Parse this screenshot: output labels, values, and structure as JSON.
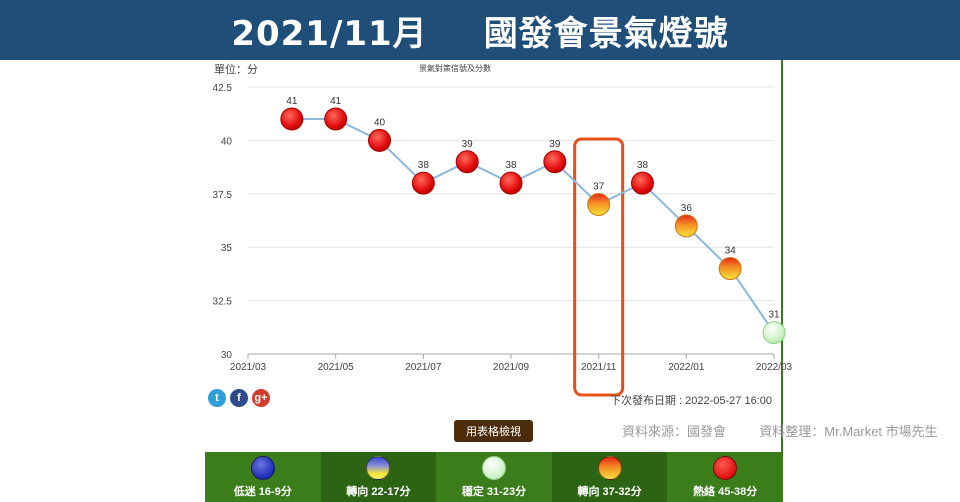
{
  "header": {
    "date": "2021/11月",
    "title": "國發會景氣燈號"
  },
  "unit_label": "單位：分",
  "chart_data": {
    "type": "line",
    "title": "景氣對策信號及分數",
    "ylim": [
      30,
      42.5
    ],
    "y_ticks": [
      "42.5",
      "40",
      "37.5",
      "35",
      "32.5",
      "30"
    ],
    "x_tick_labels": [
      "2021/03",
      "2021/05",
      "2021/07",
      "2021/09",
      "2021/11",
      "2022/01",
      "2022/03"
    ],
    "x": [
      "2021/04",
      "2021/05",
      "2021/06",
      "2021/07",
      "2021/08",
      "2021/09",
      "2021/10",
      "2021/11",
      "2021/12",
      "2022/01",
      "2022/02",
      "2022/03"
    ],
    "values": [
      41,
      41,
      40,
      38,
      39,
      38,
      39,
      37,
      38,
      36,
      34,
      31
    ],
    "data_labels": [
      "41",
      "41",
      "40",
      "38",
      "39",
      "38",
      "39",
      "37",
      "38",
      "36",
      "34",
      "31"
    ],
    "signals": [
      "red",
      "red",
      "red",
      "red",
      "red",
      "red",
      "red",
      "yellow-red",
      "red",
      "yellow-red",
      "yellow-red",
      "green"
    ],
    "highlight": "2021/11",
    "line_color": "#8ab8df",
    "highlight_color": "#e8501a",
    "grid": true
  },
  "social": {
    "twitter": "t",
    "facebook": "f",
    "google": "g+"
  },
  "next_release": "下次發布日期 : 2022-05-27 16:00",
  "table_button": "用表格檢視",
  "source": {
    "data": "資料來源：國發會",
    "compiled": "資料整理：Mr.Market  市場先生"
  },
  "legend": [
    {
      "label": "低迷 16-9分",
      "color": "blue"
    },
    {
      "label": "轉向 22-17分",
      "color": "yellow-blue"
    },
    {
      "label": "穩定 31-23分",
      "color": "green"
    },
    {
      "label": "轉向 37-32分",
      "color": "yellow-red"
    },
    {
      "label": "熱絡 45-38分",
      "color": "red"
    }
  ]
}
